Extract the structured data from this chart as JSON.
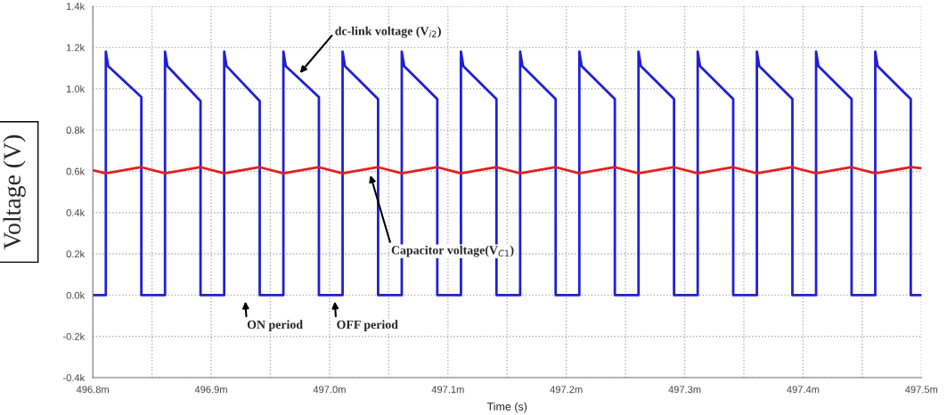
{
  "chart_data": {
    "type": "line",
    "xlabel": "Time (s)",
    "ylabel": "Voltage (V)",
    "xlim": [
      496.8,
      497.5
    ],
    "ylim": [
      -400,
      1400
    ],
    "xticks": [
      {
        "value": 496.8,
        "label": "496.8m"
      },
      {
        "value": 496.85,
        "label": null
      },
      {
        "value": 496.9,
        "label": "496.9m"
      },
      {
        "value": 496.95,
        "label": null
      },
      {
        "value": 497.0,
        "label": "497.0m"
      },
      {
        "value": 497.05,
        "label": null
      },
      {
        "value": 497.1,
        "label": "497.1m"
      },
      {
        "value": 497.15,
        "label": null
      },
      {
        "value": 497.2,
        "label": "497.2m"
      },
      {
        "value": 497.25,
        "label": null
      },
      {
        "value": 497.3,
        "label": "497.3m"
      },
      {
        "value": 497.35,
        "label": null
      },
      {
        "value": 497.4,
        "label": "497.4m"
      },
      {
        "value": 497.45,
        "label": null
      },
      {
        "value": 497.5,
        "label": "497.5m"
      }
    ],
    "yticks": [
      {
        "value": -400,
        "label": "-0.4k"
      },
      {
        "value": -200,
        "label": "-0.2k"
      },
      {
        "value": 0,
        "label": "0.0k"
      },
      {
        "value": 200,
        "label": "0.2k"
      },
      {
        "value": 400,
        "label": "0.4k"
      },
      {
        "value": 600,
        "label": "0.6k"
      },
      {
        "value": 800,
        "label": "0.8k"
      },
      {
        "value": 1000,
        "label": "1.0k"
      },
      {
        "value": 1200,
        "label": "1.2k"
      },
      {
        "value": 1400,
        "label": "1.4k"
      }
    ],
    "grid": true,
    "legend": false,
    "line_style": "solid",
    "series": [
      {
        "color": "#1f1fd6",
        "x": [
          496.8,
          496.811,
          496.811,
          496.813,
          496.841,
          496.841,
          496.861,
          496.861,
          496.863,
          496.891,
          496.891,
          496.911,
          496.911,
          496.913,
          496.941,
          496.941,
          496.961,
          496.961,
          496.963,
          496.991,
          496.991,
          497.011,
          497.011,
          497.013,
          497.041,
          497.041,
          497.061,
          497.061,
          497.063,
          497.091,
          497.091,
          497.111,
          497.111,
          497.113,
          497.141,
          497.141,
          497.161,
          497.161,
          497.163,
          497.191,
          497.191,
          497.211,
          497.211,
          497.213,
          497.241,
          497.241,
          497.261,
          497.261,
          497.263,
          497.291,
          497.291,
          497.311,
          497.311,
          497.313,
          497.341,
          497.341,
          497.361,
          497.361,
          497.363,
          497.391,
          497.391,
          497.411,
          497.411,
          497.413,
          497.441,
          497.441,
          497.461,
          497.461,
          497.463,
          497.491,
          497.491,
          497.5
        ],
        "values": [
          0,
          0,
          1180,
          1110,
          960,
          0,
          0,
          1180,
          1110,
          940,
          0,
          0,
          1180,
          1110,
          940,
          0,
          0,
          1180,
          1110,
          960,
          0,
          0,
          1180,
          1110,
          950,
          0,
          0,
          1180,
          1110,
          950,
          0,
          0,
          1180,
          1110,
          950,
          0,
          0,
          1180,
          1110,
          950,
          0,
          0,
          1180,
          1110,
          950,
          0,
          0,
          1180,
          1110,
          950,
          0,
          0,
          1180,
          1110,
          950,
          0,
          0,
          1180,
          1110,
          950,
          0,
          0,
          1180,
          1110,
          950,
          0,
          0,
          1180,
          1110,
          950,
          0,
          0
        ]
      },
      {
        "color": "#e02020",
        "x": [
          496.8,
          496.811,
          496.841,
          496.861,
          496.891,
          496.911,
          496.941,
          496.961,
          496.991,
          497.011,
          497.041,
          497.061,
          497.091,
          497.111,
          497.141,
          497.161,
          497.191,
          497.211,
          497.241,
          497.261,
          497.291,
          497.311,
          497.341,
          497.361,
          497.391,
          497.411,
          497.441,
          497.461,
          497.491,
          497.5
        ],
        "values": [
          605,
          590,
          620,
          590,
          620,
          590,
          620,
          590,
          620,
          590,
          620,
          590,
          620,
          590,
          620,
          590,
          620,
          590,
          620,
          590,
          620,
          590,
          620,
          590,
          620,
          590,
          620,
          590,
          620,
          615
        ]
      }
    ],
    "annotations": [
      "dc-link voltage (V$_{i2}$)",
      "Capacitor voltage(V$_{C1}$)",
      "ON period",
      "OFF period"
    ]
  }
}
